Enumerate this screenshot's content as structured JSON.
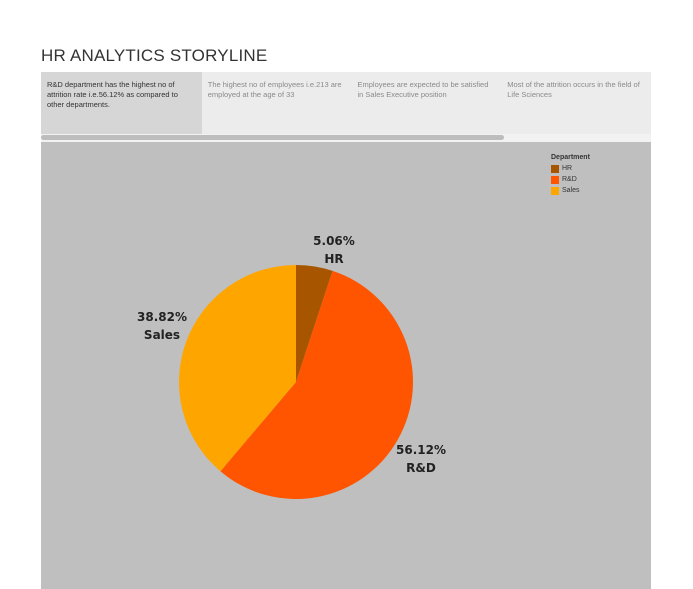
{
  "page": {
    "title": "HR ANALYTICS STORYLINE"
  },
  "story_points": [
    {
      "text": "R&D department has the highest no of attrition rate i.e.56.12% as compared to other departments.",
      "active": true
    },
    {
      "text": "The highest no of employees i.e.213 are employed at the age of 33",
      "active": false
    },
    {
      "text": "Employees are expected to be satisfied in Sales Executive position",
      "active": false
    },
    {
      "text": "Most of the attrition occurs in the field of Life Sciences",
      "active": false
    }
  ],
  "legend": {
    "title": "Department",
    "items": [
      {
        "label": "HR",
        "color": "#a85500"
      },
      {
        "label": "R&D",
        "color": "#ff5500"
      },
      {
        "label": "Sales",
        "color": "#ffa500"
      }
    ]
  },
  "chart_data": {
    "type": "pie",
    "title": "",
    "slices": [
      {
        "label": "HR",
        "value": 5.06,
        "display": "5.06%",
        "color": "#a85500"
      },
      {
        "label": "R&D",
        "value": 56.12,
        "display": "56.12%",
        "color": "#ff5500"
      },
      {
        "label": "Sales",
        "value": 38.82,
        "display": "38.82%",
        "color": "#ffa500"
      }
    ],
    "start_angle_deg": 0,
    "direction": "clockwise",
    "legend_position": "top-right"
  }
}
